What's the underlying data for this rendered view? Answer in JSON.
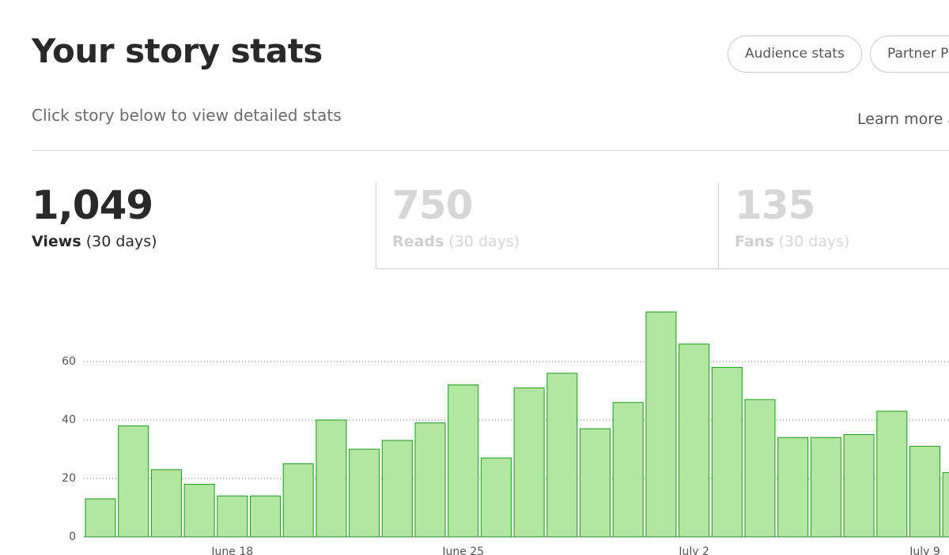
{
  "header": {
    "title": "Your story stats",
    "subtitle": "Click story below to view detailed stats",
    "buttons": [
      "Audience stats",
      "Partner Program"
    ],
    "link": "Learn more about"
  },
  "tabs": [
    {
      "number": "1,049",
      "label": "Views",
      "period": "(30 days)"
    },
    {
      "number": "750",
      "label": "Reads",
      "period": "(30 days)"
    },
    {
      "number": "135",
      "label": "Fans",
      "period": "(30 days)"
    }
  ],
  "chart_data": {
    "type": "bar",
    "categories": [
      null,
      null,
      null,
      null,
      "June 18",
      null,
      null,
      null,
      null,
      null,
      null,
      "June 25",
      null,
      null,
      null,
      null,
      null,
      null,
      "July 2",
      null,
      null,
      null,
      null,
      null,
      null,
      "July 9",
      null
    ],
    "values": [
      13,
      38,
      23,
      18,
      14,
      14,
      25,
      40,
      30,
      33,
      39,
      52,
      27,
      51,
      56,
      37,
      46,
      77,
      66,
      58,
      47,
      34,
      34,
      35,
      43,
      31,
      22
    ],
    "color": "#b3e6a1",
    "edge_color": "#1a9a1a",
    "ylim": [
      0,
      80
    ],
    "yticks": [
      0,
      20,
      40,
      60
    ],
    "grid": true
  }
}
